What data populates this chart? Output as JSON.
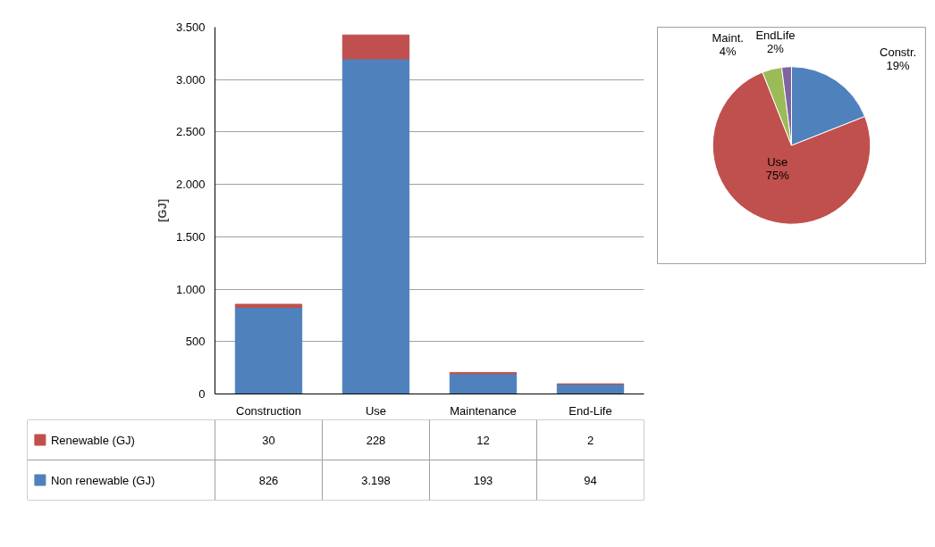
{
  "chart_data": [
    {
      "type": "bar",
      "ylabel": "[GJ]",
      "categories": [
        "Construction",
        "Use",
        "Maintenance",
        "End-Life"
      ],
      "stacked": true,
      "ylim": [
        0,
        3500
      ],
      "yticks": [
        0,
        500,
        {
          "value": 1000,
          "label": "1.000"
        },
        {
          "value": 1500,
          "label": "1.500"
        },
        {
          "value": 2000,
          "label": "2.000"
        },
        {
          "value": 2500,
          "label": "2.500"
        },
        {
          "value": 3000,
          "label": "3.000"
        },
        {
          "value": 3500,
          "label": "3.500"
        }
      ],
      "grid": "y",
      "legend": "bottom",
      "series": [
        {
          "name": "Non renewable  (GJ)",
          "color": "#4f81bd",
          "values": [
            826,
            3198,
            193,
            94
          ],
          "value_labels": [
            "826",
            "3.198",
            "193",
            "94"
          ]
        },
        {
          "name": "Renewable  (GJ)",
          "color": "#c0504d",
          "values": [
            30,
            228,
            12,
            2
          ],
          "value_labels": [
            "30",
            "228",
            "12",
            "2"
          ]
        }
      ]
    },
    {
      "type": "pie",
      "categories": [
        "Constr.",
        "Use",
        "Maint.",
        "EndLife"
      ],
      "values": [
        19,
        75,
        4,
        2
      ],
      "colors": [
        "#4f81bd",
        "#c0504d",
        "#9bbb59",
        "#8064a2"
      ],
      "value_labels": [
        "19%",
        "75%",
        "4%",
        "2%"
      ]
    }
  ]
}
